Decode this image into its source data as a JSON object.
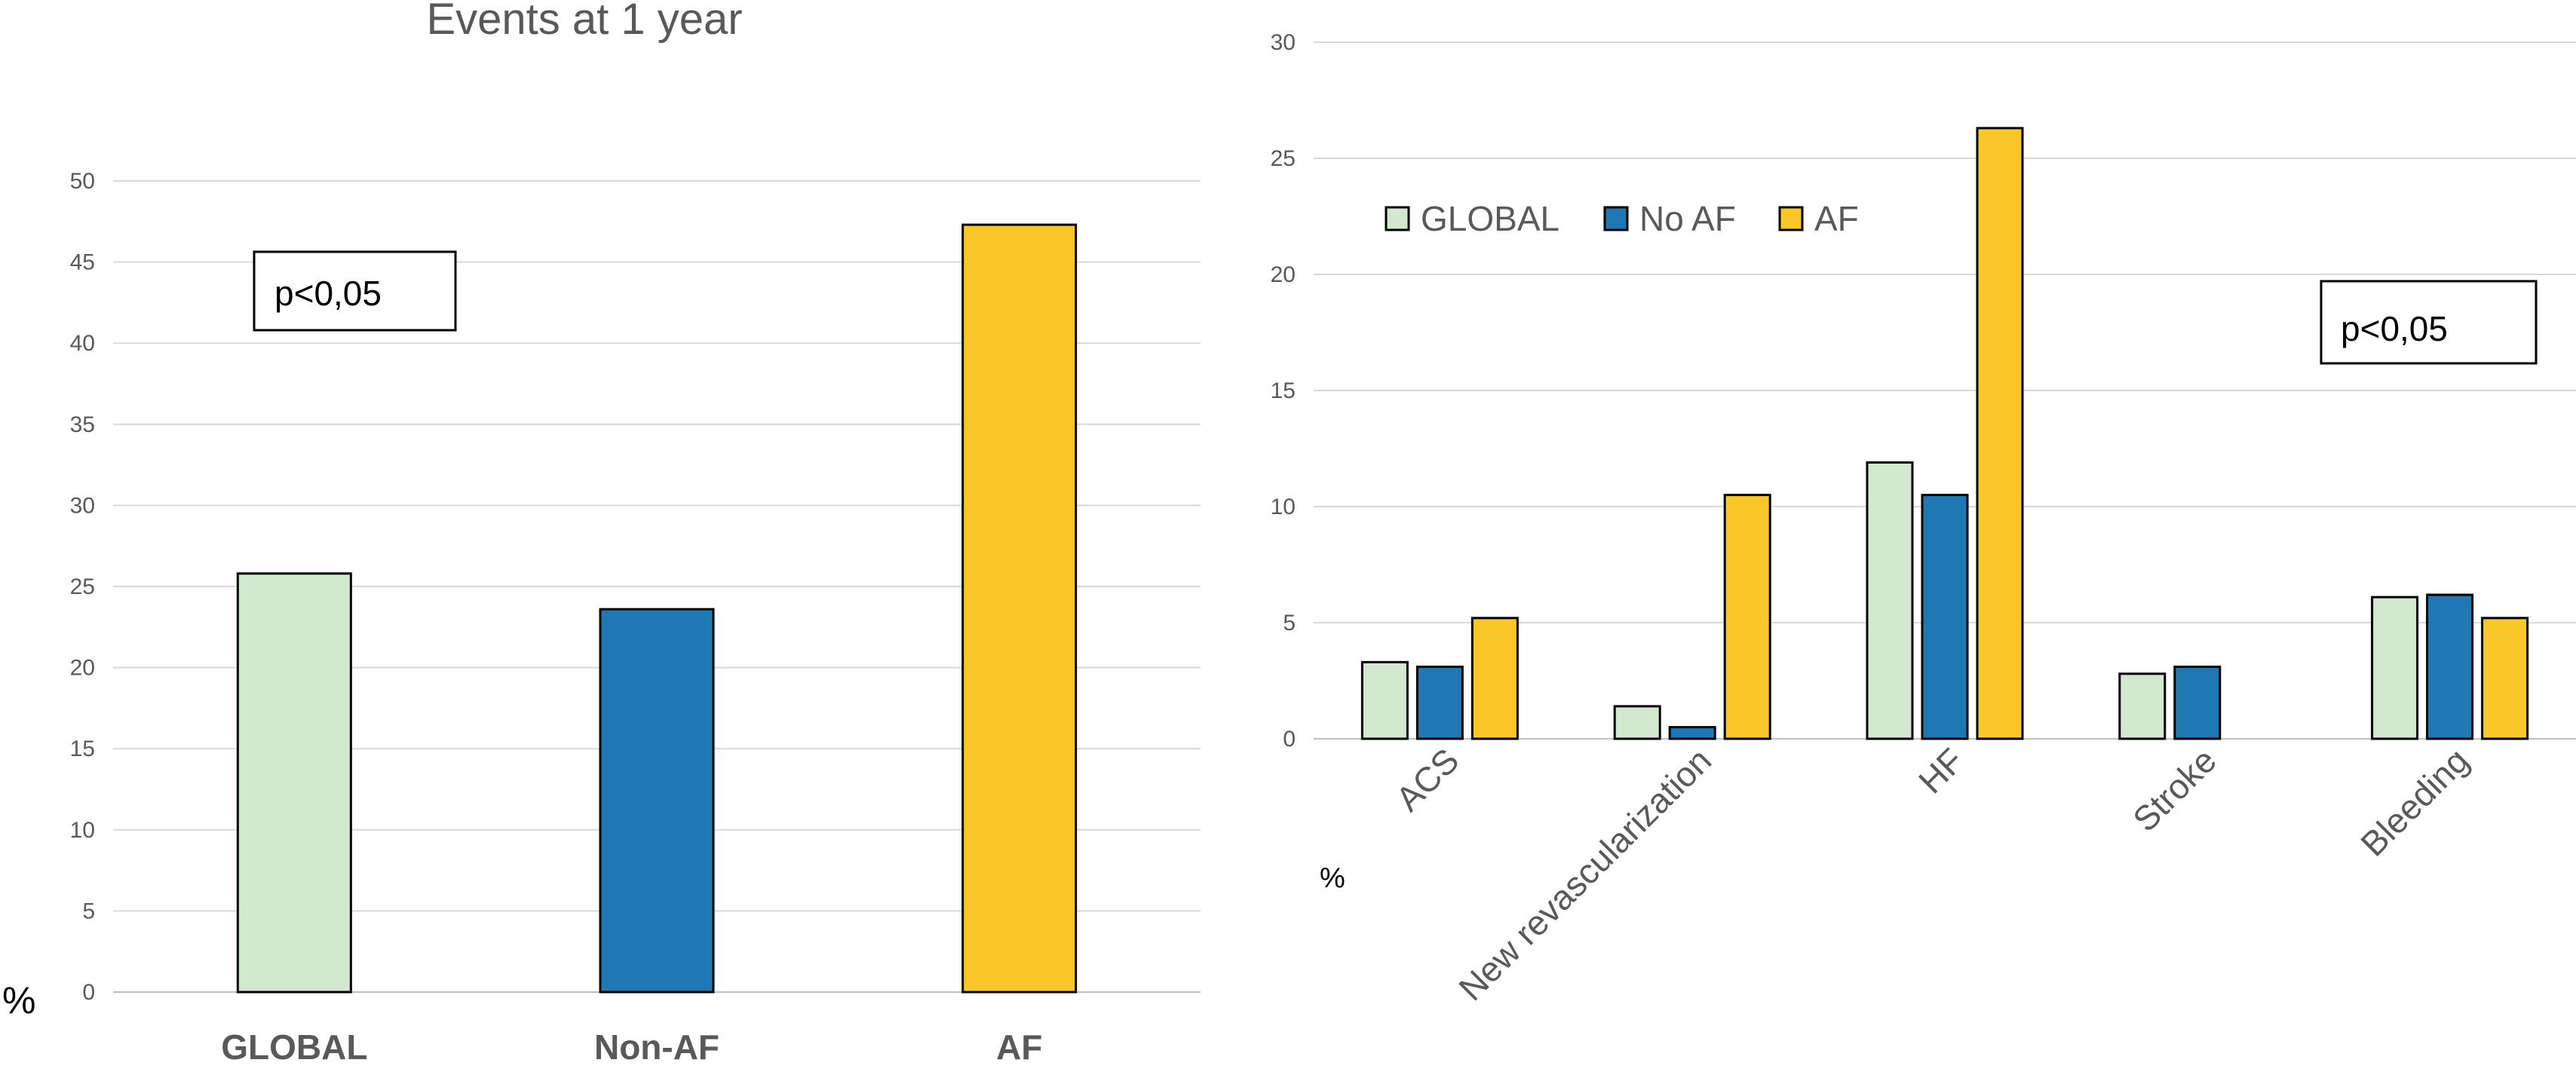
{
  "chart_data": [
    {
      "type": "bar",
      "title": "Events at 1 year",
      "ylabel": "%",
      "ylim": [
        0,
        50
      ],
      "yticks": [
        0,
        5,
        10,
        15,
        20,
        25,
        30,
        35,
        40,
        45,
        50
      ],
      "categories": [
        "GLOBAL",
        "Non-AF",
        "AF"
      ],
      "values": [
        25.8,
        23.6,
        47.3
      ],
      "colors": [
        "#d2e9d0",
        "#1f77b4",
        "#f9c828"
      ],
      "annotation": "p<0,05",
      "grid": true
    },
    {
      "type": "bar",
      "ylabel": "%",
      "ylim": [
        0,
        30
      ],
      "yticks": [
        0,
        5,
        10,
        15,
        20,
        25,
        30
      ],
      "categories": [
        "ACS",
        "New revascularization",
        "HF",
        "Stroke",
        "Bleeding"
      ],
      "series": [
        {
          "name": "GLOBAL",
          "color": "#d2e9d0",
          "values": [
            3.3,
            1.4,
            11.9,
            2.8,
            6.1
          ]
        },
        {
          "name": "No AF",
          "color": "#1f77b4",
          "values": [
            3.1,
            0.5,
            10.5,
            3.1,
            6.2
          ]
        },
        {
          "name": "AF",
          "color": "#f9c828",
          "values": [
            5.2,
            10.5,
            26.3,
            0,
            5.2
          ]
        }
      ],
      "legend_position": "top-left",
      "annotation": "p<0,05",
      "grid": true
    }
  ]
}
